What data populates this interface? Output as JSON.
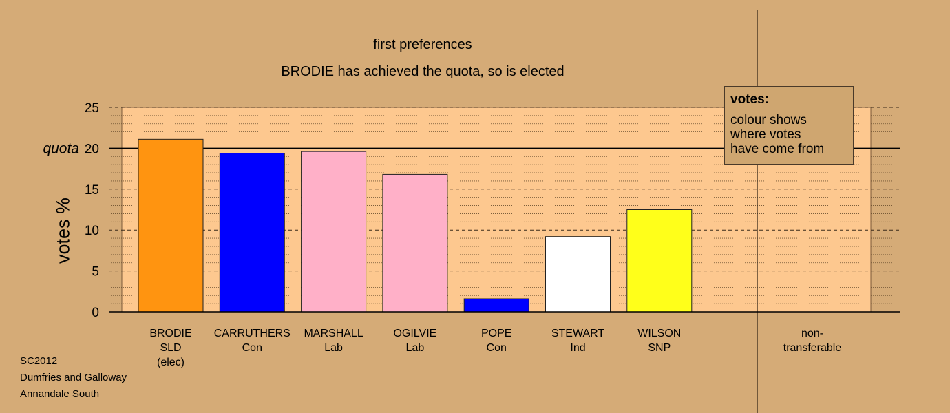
{
  "chart_data": {
    "type": "bar",
    "title": "first preferences",
    "subtitle": "BRODIE has achieved the quota, so is elected",
    "ylabel": "votes %",
    "ylim": [
      0,
      25
    ],
    "yticks": [
      "0",
      "5",
      "10",
      "15",
      "20",
      "25"
    ],
    "quota_value": 20,
    "quota_label": "quota",
    "categories": [
      {
        "name": "BRODIE",
        "party": "SLD",
        "note": "(elec)"
      },
      {
        "name": "CARRUTHERS",
        "party": "Con",
        "note": ""
      },
      {
        "name": "MARSHALL",
        "party": "Lab",
        "note": ""
      },
      {
        "name": "OGILVIE",
        "party": "Lab",
        "note": ""
      },
      {
        "name": "POPE",
        "party": "Con",
        "note": ""
      },
      {
        "name": "STEWART",
        "party": "Ind",
        "note": ""
      },
      {
        "name": "WILSON",
        "party": "SNP",
        "note": ""
      }
    ],
    "values": [
      21.1,
      19.4,
      19.6,
      16.8,
      1.6,
      9.2,
      12.5
    ],
    "colors": [
      "#ff9410",
      "#0000ff",
      "#ffb0c8",
      "#ffb0c8",
      "#0000ff",
      "#ffffff",
      "#ffff1a"
    ],
    "nontransferable": {
      "label_line1": "non-",
      "label_line2": "transferable",
      "value": 0
    },
    "legend": {
      "title": "votes:",
      "line1": "colour shows",
      "line2": "where votes",
      "line3": "have come from"
    },
    "grid": true
  },
  "footer": {
    "line1": "SC2012",
    "line2": "Dumfries and Galloway",
    "line3": "Annandale South"
  },
  "colors": {
    "background": "#d5ab77",
    "plot_area": "#fdc88f"
  }
}
